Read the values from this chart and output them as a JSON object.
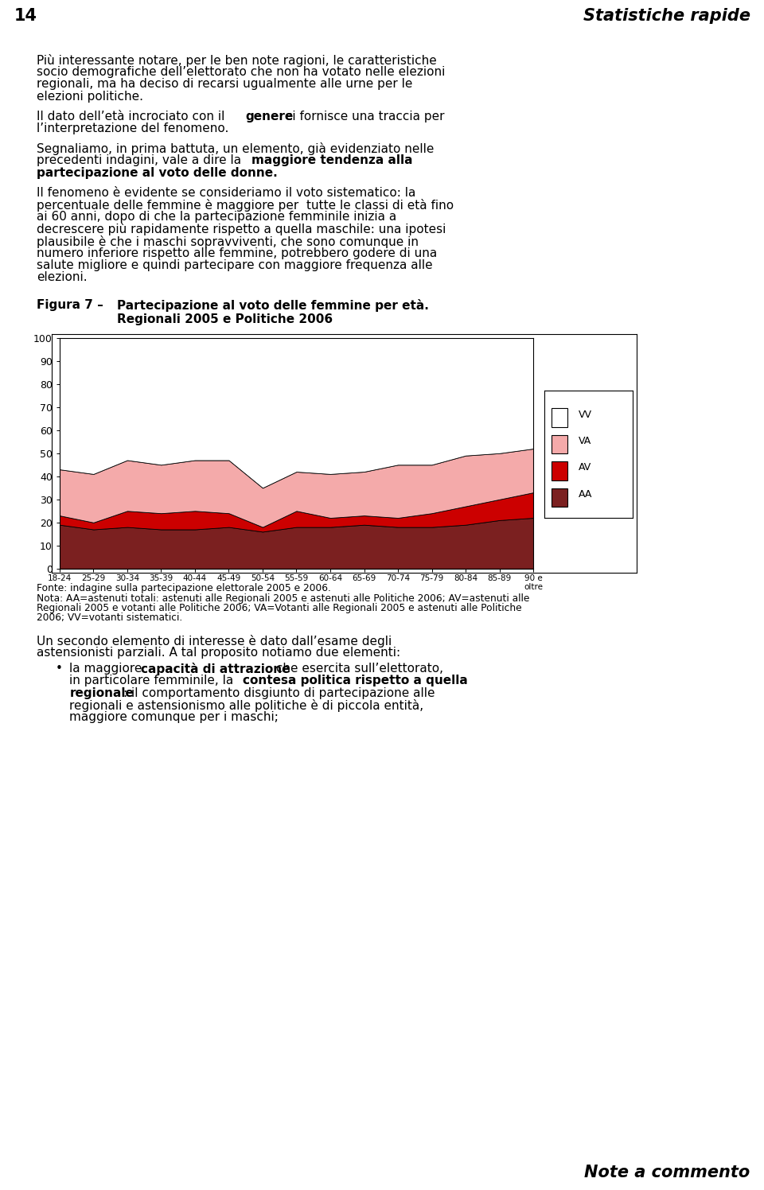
{
  "categories": [
    "18-24",
    "25-29",
    "30-34",
    "35-39",
    "40-44",
    "45-49",
    "50-54",
    "55-59",
    "60-64",
    "65-69",
    "70-74",
    "75-79",
    "80-84",
    "85-89",
    "90 e\noltre"
  ],
  "AA": [
    19,
    17,
    18,
    17,
    17,
    18,
    16,
    18,
    18,
    19,
    18,
    18,
    19,
    21,
    22
  ],
  "AV": [
    4,
    3,
    7,
    7,
    8,
    6,
    2,
    7,
    4,
    4,
    4,
    6,
    8,
    9,
    11
  ],
  "VA": [
    20,
    21,
    22,
    21,
    22,
    23,
    17,
    17,
    19,
    19,
    23,
    21,
    22,
    20,
    19
  ],
  "VV": [
    57,
    59,
    53,
    55,
    53,
    53,
    65,
    58,
    59,
    58,
    55,
    55,
    51,
    50,
    48
  ],
  "colors": {
    "AA": "#7B2020",
    "AV": "#CC0000",
    "VA": "#F4AAAA",
    "VV": "#FFFFFF"
  },
  "ylim": [
    0,
    100
  ],
  "yticks": [
    0,
    10,
    20,
    30,
    40,
    50,
    60,
    70,
    80,
    90,
    100
  ],
  "header_bg": "#8EB4E3",
  "footer_bg": "#8EB4E3",
  "page_number": "14",
  "header_right": "Statistiche rapide",
  "footer_text": "Note a commento",
  "fs_body": 11.0,
  "fs_small": 8.8,
  "fs_caption": 11.0
}
